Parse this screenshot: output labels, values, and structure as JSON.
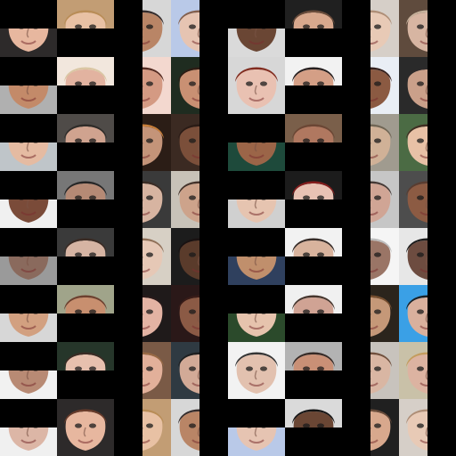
{
  "image": {
    "title": "",
    "colors": {
      "background": "#000000"
    },
    "faces": [
      {
        "skin": "#e7b79f",
        "hair": "#6b3c2a",
        "bg": "#2d2a2a"
      },
      {
        "skin": "#e8c1a4",
        "hair": "#b88c55",
        "bg": "#c29d74"
      },
      {
        "skin": "#b98566",
        "hair": "#2b2323",
        "bg": "#d7d7d7"
      },
      {
        "skin": "#e6c4b2",
        "hair": "#7f5a45",
        "bg": "#b9c9e8"
      },
      {
        "skin": "#6a4634",
        "hair": "#0b0b0b",
        "bg": "#dadada"
      },
      {
        "skin": "#d8a88d",
        "hair": "#6d4e3c",
        "bg": "#202020"
      },
      {
        "skin": "#e8cab6",
        "hair": "#ad8a72",
        "bg": "#d6cfc8"
      },
      {
        "skin": "#d7b5a2",
        "hair": "#cbb6a0",
        "bg": "#5f4b3d"
      },
      {
        "skin": "#c38a69",
        "hair": "#d66d2a",
        "bg": "#b0b0b0"
      },
      {
        "skin": "#e2b3a0",
        "hair": "#d8c49f",
        "bg": "#f2e7dd"
      },
      {
        "skin": "#d49a83",
        "hair": "#4b2218",
        "bg": "#f3d8cf"
      },
      {
        "skin": "#c99073",
        "hair": "#2e1b14",
        "bg": "#1f2c20"
      },
      {
        "skin": "#e9c1b2",
        "hair": "#7d2416",
        "bg": "#d7d7d7"
      },
      {
        "skin": "#d49f86",
        "hair": "#1a1313",
        "bg": "#f2f2f2"
      },
      {
        "skin": "#8b5a42",
        "hair": "#2a1410",
        "bg": "#e9eef5"
      },
      {
        "skin": "#caa08a",
        "hair": "#2c2a2a",
        "bg": "#2a2a2a"
      },
      {
        "skin": "#e5bba2",
        "hair": "#c89f76",
        "bg": "#bfc5c9"
      },
      {
        "skin": "#d0a38f",
        "hair": "#2d2a28",
        "bg": "#4f4b48"
      },
      {
        "skin": "#c49479",
        "hair": "#d2853c",
        "bg": "#2b1d16"
      },
      {
        "skin": "#7b4f3a",
        "hair": "#2a1b16",
        "bg": "#3b2a22"
      },
      {
        "skin": "#9b6548",
        "hair": "#1a1414",
        "bg": "#1e4a3b"
      },
      {
        "skin": "#b07860",
        "hair": "#6a4433",
        "bg": "#7a5f4a"
      },
      {
        "skin": "#d0b197",
        "hair": "#6e6352",
        "bg": "#a09b8f"
      },
      {
        "skin": "#e8c1a6",
        "hair": "#3f2b21",
        "bg": "#4b6b44"
      },
      {
        "skin": "#7a4b39",
        "hair": "#2b2020",
        "bg": "#f0f0f0"
      },
      {
        "skin": "#b58a75",
        "hair": "#222222",
        "bg": "#777777"
      },
      {
        "skin": "#d7b4a1",
        "hair": "#3a2b24",
        "bg": "#3a3a3a"
      },
      {
        "skin": "#cda38b",
        "hair": "#3d2a22",
        "bg": "#c8c2b8"
      },
      {
        "skin": "#e6c4b0",
        "hair": "#6c4c3d",
        "bg": "#d0d0d0"
      },
      {
        "skin": "#e8c2b4",
        "hair": "#8a1e1e",
        "bg": "#1c1c1c"
      },
      {
        "skin": "#d0a595",
        "hair": "#3f332e",
        "bg": "#c6c6c6"
      },
      {
        "skin": "#8c5b43",
        "hair": "#5a3b2e",
        "bg": "#4d4d4d"
      },
      {
        "skin": "#8a6a5d",
        "hair": "#2a2a2a",
        "bg": "#9a9a9a"
      },
      {
        "skin": "#d6b4a3",
        "hair": "#3b2a23",
        "bg": "#3a3a3a"
      },
      {
        "skin": "#e6c8b6",
        "hair": "#8c6a52",
        "bg": "#d7d0c5"
      },
      {
        "skin": "#5a3b2b",
        "hair": "#1a1212",
        "bg": "#1c1c1c"
      },
      {
        "skin": "#c08f6c",
        "hair": "#6a4a34",
        "bg": "#2f405e"
      },
      {
        "skin": "#d8b39d",
        "hair": "#2c211c",
        "bg": "#f2f2f2"
      },
      {
        "skin": "#9a7566",
        "hair": "#b8b8b8",
        "bg": "#f5f5f5"
      },
      {
        "skin": "#6d4c40",
        "hair": "#111111",
        "bg": "#e7e7e7"
      },
      {
        "skin": "#d2a080",
        "hair": "#8b5a2b",
        "bg": "#d7d7d7"
      },
      {
        "skin": "#c88f6f",
        "hair": "#6a3b2a",
        "bg": "#a0a48a"
      },
      {
        "skin": "#e3b3a3",
        "hair": "#2a1a1a",
        "bg": "#1f1a1a"
      },
      {
        "skin": "#8b5a45",
        "hair": "#3a1c18",
        "bg": "#2a1818"
      },
      {
        "skin": "#e6c3ad",
        "hair": "#7a4a3a",
        "bg": "#2b4a2b"
      },
      {
        "skin": "#d0a394",
        "hair": "#3b2a22",
        "bg": "#f0f0f0"
      },
      {
        "skin": "#c59878",
        "hair": "#7a5130",
        "bg": "#2b241c"
      },
      {
        "skin": "#d9b09d",
        "hair": "#1a1a1a",
        "bg": "#3aa0e6"
      },
      {
        "skin": "#b88a74",
        "hair": "#2a2a2a",
        "bg": "#f1f1f1"
      },
      {
        "skin": "#e7c0ae",
        "hair": "#3b2b24",
        "bg": "#26362a"
      },
      {
        "skin": "#e2b09a",
        "hair": "#9a6a45",
        "bg": "#7a5a46"
      },
      {
        "skin": "#d2aa97",
        "hair": "#1f1f1f",
        "bg": "#2f3a42"
      },
      {
        "skin": "#e2c1af",
        "hair": "#2a2a2a",
        "bg": "#f2f2f2"
      },
      {
        "skin": "#c99076",
        "hair": "#2f231f",
        "bg": "#b3b3b3"
      },
      {
        "skin": "#d9b6a3",
        "hair": "#6d4a36",
        "bg": "#c8c3bd"
      },
      {
        "skin": "#dcb3a1",
        "hair": "#c49a5a",
        "bg": "#c9c1a8"
      },
      {
        "skin": "#dcb6a6",
        "hair": "#2a2a2a",
        "bg": "#f0f0f0"
      }
    ]
  }
}
